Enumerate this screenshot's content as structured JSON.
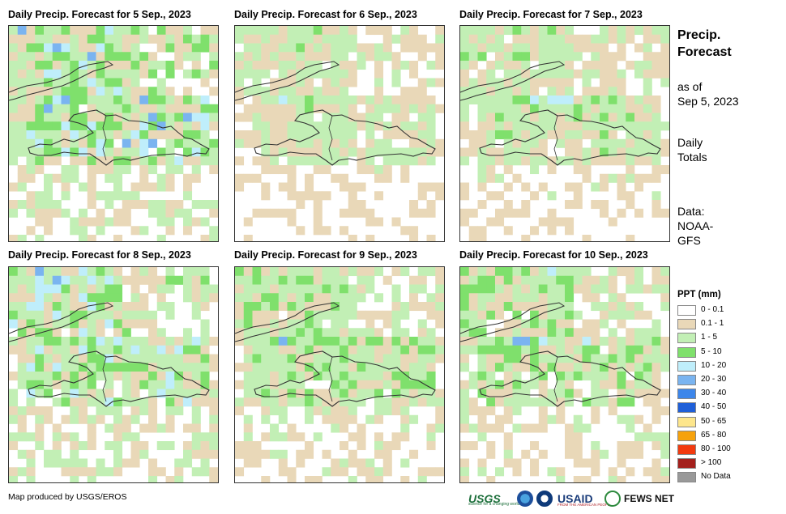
{
  "panels": [
    {
      "title": "Daily Precip. Forecast for 5 Sep., 2023",
      "seed": 5,
      "wet": 1.15
    },
    {
      "title": "Daily Precip. Forecast for 6 Sep., 2023",
      "seed": 6,
      "wet": 0.75
    },
    {
      "title": "Daily Precip. Forecast for 7 Sep., 2023",
      "seed": 7,
      "wet": 0.8
    },
    {
      "title": "Daily Precip. Forecast for 8 Sep., 2023",
      "seed": 8,
      "wet": 1.1
    },
    {
      "title": "Daily Precip. Forecast for 9 Sep., 2023",
      "seed": 9,
      "wet": 0.95
    },
    {
      "title": "Daily Precip. Forecast for 10 Sep., 2023",
      "seed": 10,
      "wet": 0.95
    }
  ],
  "side": {
    "title_line1": "Precip.",
    "title_line2": "Forecast",
    "asof_line1": "as of",
    "asof_line2": "Sep 5, 2023",
    "daily_line1": "Daily",
    "daily_line2": "Totals",
    "data_line1": "Data:",
    "data_line2": "NOAA-",
    "data_line3": "GFS"
  },
  "legend": {
    "title": "PPT (mm)",
    "items": [
      {
        "label": "0 - 0.1",
        "color": "#ffffff"
      },
      {
        "label": "0.1 - 1",
        "color": "#e9d8b8"
      },
      {
        "label": "1 - 5",
        "color": "#c2efb5"
      },
      {
        "label": "5 - 10",
        "color": "#7fe06c"
      },
      {
        "label": "10 - 20",
        "color": "#bfeefb"
      },
      {
        "label": "20 - 30",
        "color": "#7ab4f0"
      },
      {
        "label": "30 - 40",
        "color": "#3c86ea"
      },
      {
        "label": "40 - 50",
        "color": "#1f5fd8"
      },
      {
        "label": "50 - 65",
        "color": "#fde68c"
      },
      {
        "label": "65 - 80",
        "color": "#f6a20c"
      },
      {
        "label": "80 - 100",
        "color": "#f23a0f"
      },
      {
        "label": "> 100",
        "color": "#a4201c"
      },
      {
        "label": "No Data",
        "color": "#999999"
      }
    ]
  },
  "footer": {
    "credit": "Map produced by USGS/EROS",
    "logo_usgs": "USGS",
    "logo_usgs_tagline": "science for a changing world",
    "logo_usaid": "USAID",
    "logo_usaid_tagline": "FROM THE AMERICAN PEOPLE",
    "logo_fews": "FEWS NET"
  }
}
